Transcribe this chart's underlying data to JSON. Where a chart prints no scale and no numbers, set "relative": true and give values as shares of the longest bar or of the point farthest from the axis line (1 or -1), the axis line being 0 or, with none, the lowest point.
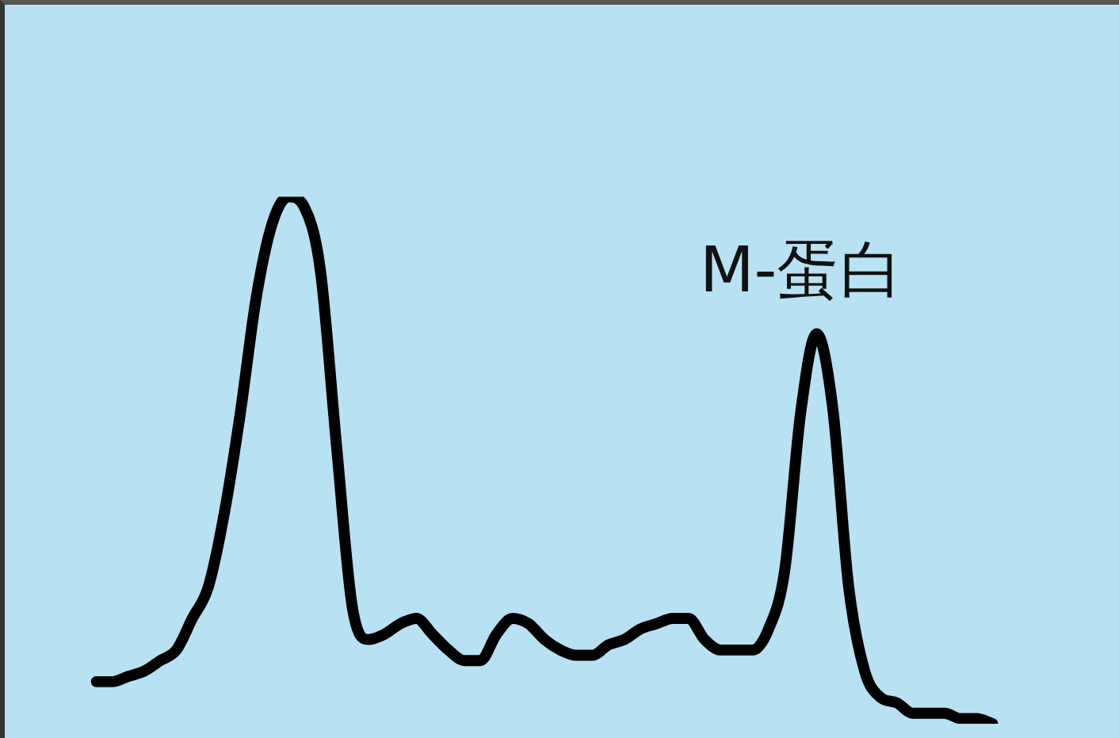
{
  "chart_data": {
    "type": "line",
    "relative": true,
    "color": "#000000",
    "marker": "none",
    "grid": false,
    "legend": false,
    "categories": [
      null,
      null,
      null,
      null,
      null,
      null,
      null,
      null,
      null,
      null,
      null,
      null,
      null,
      null,
      null,
      null,
      null,
      null,
      null,
      null,
      null,
      null,
      null,
      null,
      null,
      null,
      null,
      null,
      null,
      null,
      null,
      null,
      null,
      null,
      null,
      null,
      null,
      null,
      null,
      null,
      null,
      null,
      null,
      null,
      null,
      null,
      null,
      null,
      null,
      null,
      null,
      null,
      null,
      null,
      null,
      null,
      null
    ],
    "values": [
      0.08,
      0.08,
      0.09,
      0.1,
      0.12,
      0.14,
      0.2,
      0.26,
      0.4,
      0.59,
      0.81,
      0.95,
      1.0,
      0.98,
      0.86,
      0.53,
      0.22,
      0.16,
      0.17,
      0.19,
      0.2,
      0.17,
      0.14,
      0.12,
      0.12,
      0.17,
      0.2,
      0.19,
      0.16,
      0.14,
      0.13,
      0.13,
      0.15,
      0.16,
      0.18,
      0.19,
      0.2,
      0.2,
      0.16,
      0.14,
      0.14,
      0.14,
      0.18,
      0.29,
      0.59,
      0.74,
      0.6,
      0.26,
      0.1,
      0.05,
      0.04,
      0.02,
      0.02,
      0.02,
      0.01,
      0.01,
      0
    ],
    "annotations": [
      "M-蛋白"
    ]
  }
}
